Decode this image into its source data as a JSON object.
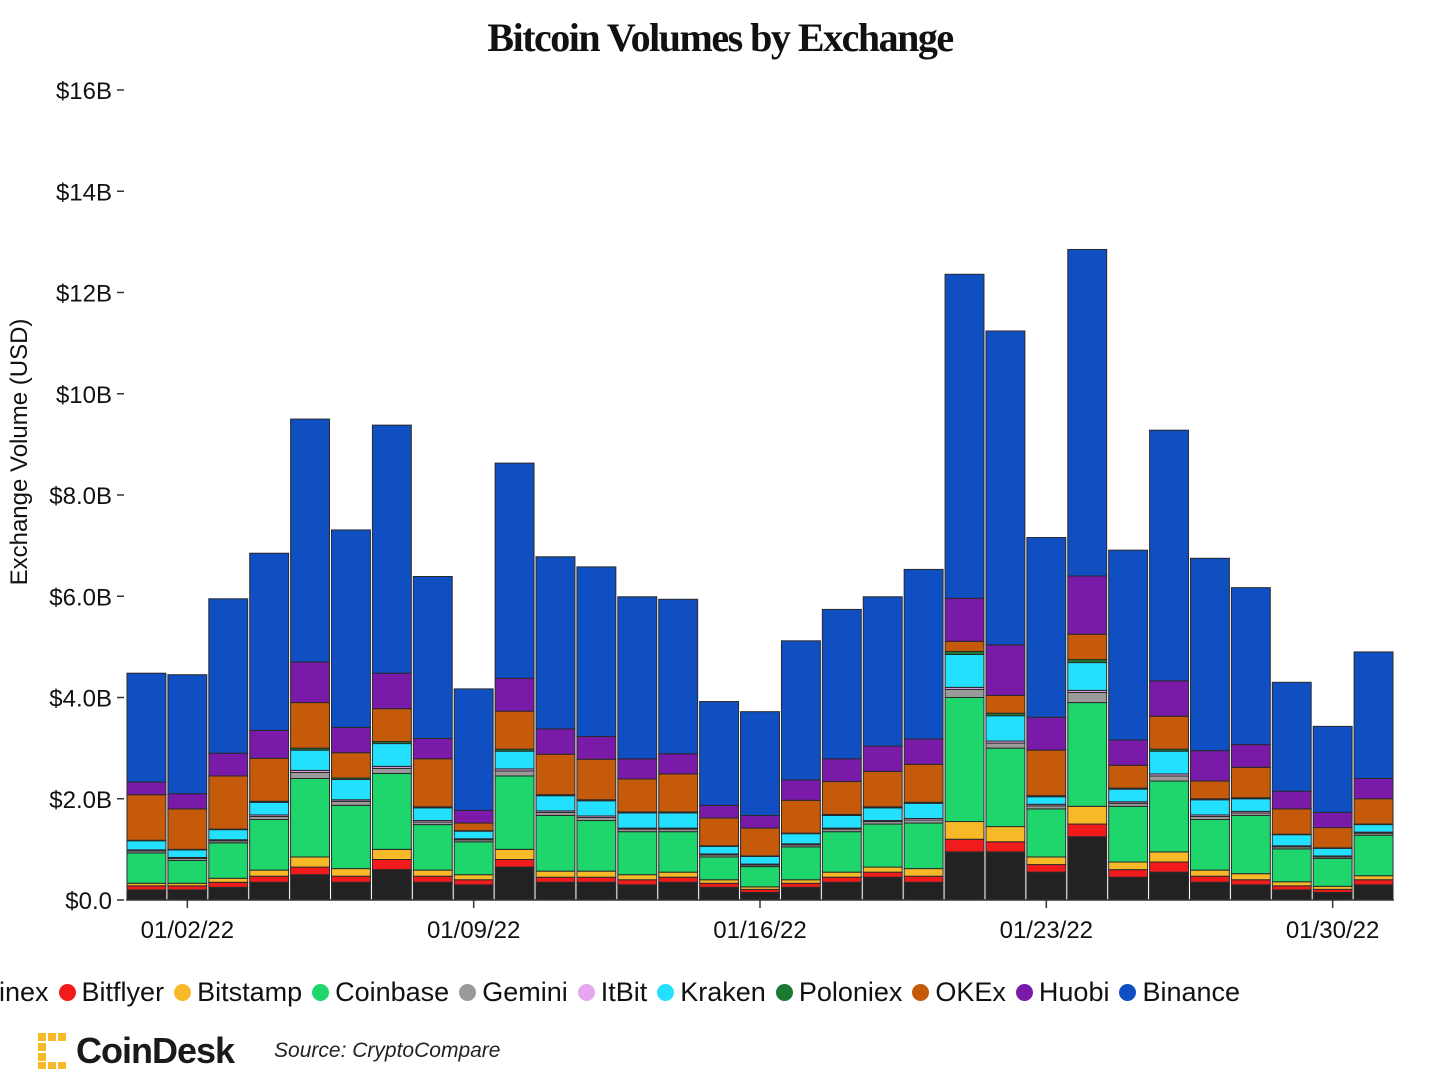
{
  "chart_data": {
    "type": "bar",
    "stacked": true,
    "title": "Bitcoin Volumes by Exchange",
    "ylabel": "Exchange Volume (USD)",
    "xlabel": "",
    "ylim": [
      0,
      16
    ],
    "yticks": [
      {
        "value": 0,
        "label": "$0.0"
      },
      {
        "value": 2,
        "label": "$2.0B"
      },
      {
        "value": 4,
        "label": "$4.0B"
      },
      {
        "value": 6,
        "label": "$6.0B"
      },
      {
        "value": 8,
        "label": "$8.0B"
      },
      {
        "value": 10,
        "label": "$10B"
      },
      {
        "value": 12,
        "label": "$12B"
      },
      {
        "value": 14,
        "label": "$14B"
      },
      {
        "value": 16,
        "label": "$16B"
      }
    ],
    "xticks": [
      {
        "index": 1,
        "label": "01/02/22"
      },
      {
        "index": 8,
        "label": "01/09/22"
      },
      {
        "index": 15,
        "label": "01/16/22"
      },
      {
        "index": 22,
        "label": "01/23/22"
      },
      {
        "index": 29,
        "label": "01/30/22"
      }
    ],
    "categories": [
      "01/01/22",
      "01/02/22",
      "01/03/22",
      "01/04/22",
      "01/05/22",
      "01/06/22",
      "01/07/22",
      "01/08/22",
      "01/09/22",
      "01/10/22",
      "01/11/22",
      "01/12/22",
      "01/13/22",
      "01/14/22",
      "01/15/22",
      "01/16/22",
      "01/17/22",
      "01/18/22",
      "01/19/22",
      "01/20/22",
      "01/21/22",
      "01/22/22",
      "01/23/22",
      "01/24/22",
      "01/25/22",
      "01/26/22",
      "01/27/22",
      "01/28/22",
      "01/29/22",
      "01/30/22",
      "01/31/22"
    ],
    "series": [
      {
        "name": "Bitfinex",
        "color": "#222222",
        "values": [
          0.2,
          0.2,
          0.25,
          0.35,
          0.5,
          0.35,
          0.6,
          0.35,
          0.3,
          0.65,
          0.35,
          0.35,
          0.3,
          0.35,
          0.25,
          0.15,
          0.25,
          0.35,
          0.45,
          0.35,
          0.95,
          0.95,
          0.55,
          1.25,
          0.45,
          0.55,
          0.35,
          0.3,
          0.2,
          0.15,
          0.3
        ]
      },
      {
        "name": "Bitflyer",
        "color": "#f21b1b",
        "values": [
          0.08,
          0.08,
          0.1,
          0.12,
          0.15,
          0.12,
          0.2,
          0.12,
          0.1,
          0.15,
          0.1,
          0.1,
          0.1,
          0.1,
          0.08,
          0.06,
          0.08,
          0.1,
          0.1,
          0.12,
          0.25,
          0.2,
          0.15,
          0.25,
          0.15,
          0.2,
          0.12,
          0.1,
          0.08,
          0.06,
          0.1
        ]
      },
      {
        "name": "Bitstamp",
        "color": "#f7b928",
        "values": [
          0.05,
          0.05,
          0.08,
          0.12,
          0.2,
          0.15,
          0.2,
          0.12,
          0.1,
          0.2,
          0.12,
          0.12,
          0.1,
          0.1,
          0.07,
          0.05,
          0.07,
          0.1,
          0.1,
          0.15,
          0.35,
          0.3,
          0.15,
          0.35,
          0.15,
          0.2,
          0.12,
          0.12,
          0.08,
          0.06,
          0.08
        ]
      },
      {
        "name": "Coinbase",
        "color": "#1ed66b",
        "values": [
          0.6,
          0.45,
          0.7,
          1.0,
          1.55,
          1.25,
          1.5,
          0.9,
          0.65,
          1.45,
          1.1,
          1.0,
          0.85,
          0.8,
          0.45,
          0.4,
          0.65,
          0.8,
          0.85,
          0.9,
          2.45,
          1.55,
          0.95,
          2.05,
          1.1,
          1.4,
          1.0,
          1.15,
          0.65,
          0.55,
          0.8
        ]
      },
      {
        "name": "Gemini",
        "color": "#9a9a9a",
        "values": [
          0.04,
          0.04,
          0.04,
          0.06,
          0.12,
          0.08,
          0.1,
          0.05,
          0.04,
          0.1,
          0.06,
          0.06,
          0.05,
          0.05,
          0.04,
          0.03,
          0.04,
          0.05,
          0.05,
          0.06,
          0.16,
          0.1,
          0.06,
          0.2,
          0.06,
          0.1,
          0.06,
          0.05,
          0.04,
          0.03,
          0.04
        ]
      },
      {
        "name": "ItBit",
        "color": "#e6a6f0",
        "values": [
          0.02,
          0.02,
          0.02,
          0.03,
          0.04,
          0.03,
          0.04,
          0.03,
          0.02,
          0.04,
          0.03,
          0.03,
          0.02,
          0.02,
          0.02,
          0.02,
          0.02,
          0.02,
          0.02,
          0.03,
          0.04,
          0.04,
          0.03,
          0.04,
          0.03,
          0.04,
          0.03,
          0.03,
          0.02,
          0.02,
          0.02
        ]
      },
      {
        "name": "Kraken",
        "color": "#24e0ff",
        "values": [
          0.18,
          0.15,
          0.2,
          0.25,
          0.4,
          0.4,
          0.45,
          0.25,
          0.15,
          0.35,
          0.3,
          0.3,
          0.3,
          0.3,
          0.15,
          0.15,
          0.2,
          0.25,
          0.25,
          0.3,
          0.65,
          0.5,
          0.15,
          0.55,
          0.25,
          0.45,
          0.3,
          0.25,
          0.22,
          0.15,
          0.15
        ]
      },
      {
        "name": "Poloniex",
        "color": "#1a7a32",
        "values": [
          0.01,
          0.01,
          0.01,
          0.02,
          0.04,
          0.03,
          0.04,
          0.02,
          0.01,
          0.04,
          0.02,
          0.02,
          0.02,
          0.02,
          0.01,
          0.01,
          0.01,
          0.02,
          0.02,
          0.02,
          0.06,
          0.05,
          0.02,
          0.06,
          0.02,
          0.04,
          0.02,
          0.02,
          0.01,
          0.01,
          0.01
        ]
      },
      {
        "name": "OKEx",
        "color": "#c45a0a",
        "values": [
          0.9,
          0.8,
          1.05,
          0.85,
          0.9,
          0.5,
          0.65,
          0.95,
          0.15,
          0.75,
          0.8,
          0.8,
          0.65,
          0.75,
          0.55,
          0.55,
          0.65,
          0.65,
          0.7,
          0.75,
          0.2,
          0.35,
          0.9,
          0.5,
          0.45,
          0.65,
          0.35,
          0.6,
          0.5,
          0.4,
          0.5
        ]
      },
      {
        "name": "Huobi",
        "color": "#7a1aa8",
        "values": [
          0.25,
          0.3,
          0.45,
          0.55,
          0.8,
          0.5,
          0.7,
          0.4,
          0.25,
          0.65,
          0.5,
          0.45,
          0.4,
          0.4,
          0.25,
          0.25,
          0.4,
          0.45,
          0.5,
          0.5,
          0.85,
          1.0,
          0.65,
          1.15,
          0.5,
          0.7,
          0.6,
          0.45,
          0.35,
          0.3,
          0.4
        ]
      },
      {
        "name": "Binance",
        "color": "#0f4fc2",
        "values": [
          2.15,
          2.35,
          3.05,
          3.5,
          4.8,
          3.9,
          4.9,
          3.2,
          2.4,
          4.25,
          3.4,
          3.35,
          3.2,
          3.05,
          2.05,
          2.05,
          2.75,
          2.95,
          2.95,
          3.35,
          6.4,
          6.2,
          3.55,
          6.45,
          3.75,
          4.95,
          3.8,
          3.1,
          2.15,
          1.7,
          2.5
        ]
      }
    ]
  },
  "legend": {
    "items": [
      {
        "label": "Bitfinex",
        "display": "itfinex",
        "color": "#222222"
      },
      {
        "label": "Bitflyer",
        "display": "Bitflyer",
        "color": "#f21b1b"
      },
      {
        "label": "Bitstamp",
        "display": "Bitstamp",
        "color": "#f7b928"
      },
      {
        "label": "Coinbase",
        "display": "Coinbase",
        "color": "#1ed66b"
      },
      {
        "label": "Gemini",
        "display": "Gemini",
        "color": "#9a9a9a"
      },
      {
        "label": "ItBit",
        "display": "ItBit",
        "color": "#e6a6f0"
      },
      {
        "label": "Kraken",
        "display": "Kraken",
        "color": "#24e0ff"
      },
      {
        "label": "Poloniex",
        "display": "Poloniex",
        "color": "#1a7a32"
      },
      {
        "label": "OKEx",
        "display": "OKEx",
        "color": "#c45a0a"
      },
      {
        "label": "Huobi",
        "display": "Huobi",
        "color": "#7a1aa8"
      },
      {
        "label": "Binance",
        "display": "Binance",
        "color": "#0f4fc2"
      }
    ]
  },
  "footer": {
    "brand": "CoinDesk",
    "brand_color": "#f7b928",
    "source": "Source: CryptoCompare"
  }
}
